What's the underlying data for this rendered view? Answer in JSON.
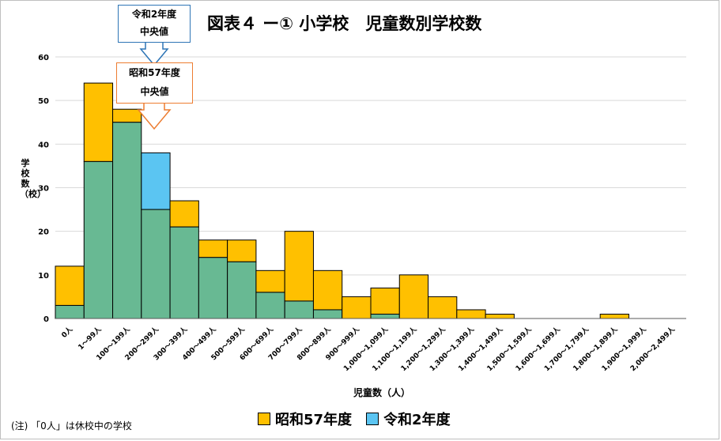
{
  "chart_data": {
    "type": "bar",
    "title": "図表４ ー① 小学校　児童数別学校数",
    "xlabel": "児童数（人）",
    "ylabel": "学校数（校）",
    "ylim": [
      0,
      60
    ],
    "yticks": [
      0,
      10,
      20,
      30,
      40,
      50,
      60
    ],
    "grid": true,
    "legend_position": "bottom",
    "categories": [
      "0人",
      "1～99人",
      "100～199人",
      "200～299人",
      "300～399人",
      "400～499人",
      "500～599人",
      "600～699人",
      "700～799人",
      "800～899人",
      "900～999人",
      "1,000～1,099人",
      "1,100～1,199人",
      "1,200～1,299人",
      "1,300～1,399人",
      "1,400～1,499人",
      "1,500～1,599人",
      "1,600～1,699人",
      "1,700～1,799人",
      "1,800～1,899人",
      "1,900～1,999人",
      "2,000～2,499人"
    ],
    "series": [
      {
        "name": "昭和57年度",
        "color": "#ffc000",
        "values": [
          12,
          54,
          48,
          25,
          27,
          18,
          18,
          11,
          20,
          11,
          5,
          7,
          10,
          5,
          2,
          1,
          0,
          0,
          0,
          1,
          0,
          0
        ]
      },
      {
        "name": "令和2年度",
        "color": "#5bc5f2",
        "values": [
          3,
          36,
          45,
          38,
          21,
          14,
          13,
          6,
          4,
          2,
          0,
          1,
          0,
          0,
          0,
          0,
          0,
          0,
          0,
          0,
          0,
          0
        ]
      }
    ],
    "overlap_color": "#68b993",
    "annotations": [
      {
        "lines": [
          "令和2年度",
          "中央値"
        ],
        "category": "200～299人",
        "color": "#2e75b6"
      },
      {
        "lines": [
          "昭和57年度",
          "中央値"
        ],
        "category": "200～299人",
        "color": "#ed7d31"
      }
    ]
  },
  "callouts": {
    "r2": {
      "line1": "令和2年度",
      "line2": "中央値"
    },
    "s57": {
      "line1": "昭和57年度",
      "line2": "中央値"
    }
  },
  "footnote": "(注) 「0人」は休校中の学校",
  "legend": {
    "s57": "昭和57年度",
    "r2": "令和2年度"
  }
}
